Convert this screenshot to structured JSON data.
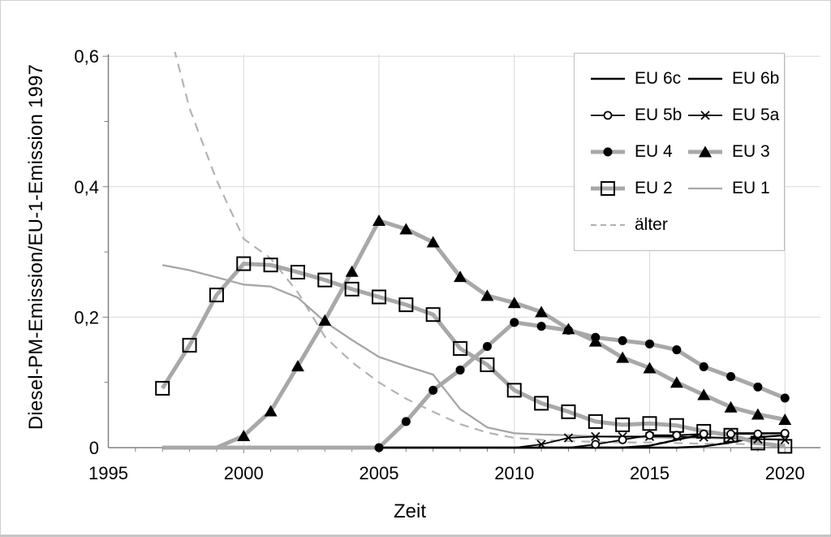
{
  "figure": {
    "background": "#ffffff",
    "border_color": "#cfcfcf",
    "gridline_color": "#d9d9d9",
    "axis_color": "#808080",
    "text_color": "#000000"
  },
  "chart_data": {
    "type": "line",
    "title": "",
    "xlabel": "Zeit",
    "ylabel": "Diesel-PM-Emission/EU-1-Emission 1997",
    "xlim": [
      1995,
      2021.3
    ],
    "ylim": [
      0,
      0.6
    ],
    "grid": true,
    "legend_position": "top-right",
    "x_ticks": {
      "labels": [
        "1995",
        "2000",
        "2005",
        "2010",
        "2015",
        "2020"
      ],
      "values": [
        1995,
        2000,
        2005,
        2010,
        2015,
        2020
      ]
    },
    "y_ticks": {
      "labels": [
        "0",
        "0,2",
        "0,4",
        "0,6"
      ],
      "values": [
        0,
        0.2,
        0.4,
        0.6
      ]
    },
    "x_minor_tick_step": 1,
    "y_minor_tick_step": 0.1,
    "x": [
      1997,
      1998,
      1999,
      2000,
      2001,
      2002,
      2003,
      2004,
      2005,
      2006,
      2007,
      2008,
      2009,
      2010,
      2011,
      2012,
      2013,
      2014,
      2015,
      2016,
      2017,
      2018,
      2019,
      2020
    ],
    "series": [
      {
        "name": "EU 6c",
        "color": "#000000",
        "width": 2.4,
        "dash": null,
        "marker": "none",
        "marker_from": null,
        "values": [
          0,
          0,
          0,
          0,
          0,
          0,
          0,
          0,
          0,
          0,
          0,
          0,
          0,
          0,
          0,
          0,
          0,
          0,
          0,
          0,
          0.002,
          0.008,
          0.016,
          0.019
        ]
      },
      {
        "name": "EU 6b",
        "color": "#000000",
        "width": 2.4,
        "dash": null,
        "marker": "none",
        "marker_from": null,
        "values": [
          0,
          0,
          0,
          0,
          0,
          0,
          0,
          0,
          0,
          0,
          0,
          0,
          0,
          0,
          0,
          0,
          0,
          0,
          0.003,
          0.012,
          0.021,
          0.022,
          0.022,
          0.022
        ]
      },
      {
        "name": "EU 5b",
        "color": "#000000",
        "width": 1.8,
        "dash": null,
        "marker": "circle-open",
        "marker_from": 2013,
        "values": [
          0,
          0,
          0,
          0,
          0,
          0,
          0,
          0,
          0,
          0,
          0,
          0,
          0,
          0,
          0,
          0,
          0.005,
          0.012,
          0.019,
          0.019,
          0.021,
          0.021,
          0.021,
          0.022
        ]
      },
      {
        "name": "EU 5a",
        "color": "#000000",
        "width": 1.8,
        "dash": null,
        "marker": "x",
        "marker_from": 2011,
        "values": [
          0,
          0,
          0,
          0,
          0,
          0,
          0,
          0,
          0,
          0,
          0,
          0,
          0,
          0,
          0.005,
          0.015,
          0.017,
          0.017,
          0.017,
          0.017,
          0.016,
          0.015,
          0.013,
          0.012
        ]
      },
      {
        "name": "EU 4",
        "color": "#a8a8a8",
        "width": 5,
        "dash": null,
        "marker": "circle-filled",
        "marker_from": 2005,
        "values": [
          0,
          0,
          0,
          0,
          0,
          0,
          0,
          0,
          0,
          0.04,
          0.088,
          0.119,
          0.155,
          0.192,
          0.186,
          0.18,
          0.169,
          0.164,
          0.159,
          0.15,
          0.124,
          0.109,
          0.093,
          0.076
        ]
      },
      {
        "name": "EU 3",
        "color": "#a8a8a8",
        "width": 5,
        "dash": null,
        "marker": "triangle-filled",
        "marker_from": 2000,
        "values": [
          0,
          0,
          0,
          0.018,
          0.056,
          0.125,
          0.195,
          0.27,
          0.348,
          0.335,
          0.315,
          0.262,
          0.233,
          0.222,
          0.208,
          0.182,
          0.163,
          0.138,
          0.122,
          0.1,
          0.081,
          0.062,
          0.051,
          0.043
        ]
      },
      {
        "name": "EU 2",
        "color": "#a8a8a8",
        "width": 5,
        "dash": null,
        "marker": "square-open",
        "marker_from": 1997,
        "values": [
          0.091,
          0.157,
          0.234,
          0.282,
          0.28,
          0.269,
          0.257,
          0.243,
          0.231,
          0.219,
          0.204,
          0.152,
          0.127,
          0.088,
          0.068,
          0.055,
          0.04,
          0.035,
          0.037,
          0.034,
          0.025,
          0.019,
          0.007,
          0.002
        ]
      },
      {
        "name": "EU 1",
        "color": "#a6a6a6",
        "width": 2.3,
        "dash": null,
        "marker": "none",
        "marker_from": null,
        "values": [
          0.28,
          0.272,
          0.261,
          0.25,
          0.247,
          0.23,
          0.193,
          0.165,
          0.139,
          0.125,
          0.112,
          0.059,
          0.031,
          0.022,
          0.02,
          0.019,
          0.017,
          0.016,
          0.016,
          0.015,
          0.015,
          0.014,
          0.014,
          0.013
        ]
      },
      {
        "name": "älter",
        "color": "#b3b3b3",
        "width": 2.2,
        "dash": "11 8",
        "marker": "none",
        "marker_from": null,
        "first_point_clipped_above_plot": true,
        "values": [
          0.68,
          0.52,
          0.41,
          0.32,
          0.29,
          0.238,
          0.17,
          0.131,
          0.1,
          0.075,
          0.055,
          0.036,
          0.023,
          0.015,
          0.012,
          0.01,
          0.009,
          0.008,
          0.008,
          0.007,
          0.006,
          0.006,
          0.005,
          0.005
        ]
      }
    ],
    "draw_order": [
      "älter",
      "EU 1",
      "EU 6c",
      "EU 6b",
      "EU 5a",
      "EU 5b",
      "EU 2",
      "EU 3",
      "EU 4"
    ],
    "marker_order": [
      "EU 2",
      "EU 3",
      "EU 4",
      "EU 5a",
      "EU 5b"
    ]
  },
  "legend": {
    "order": [
      "EU 6c",
      "EU 6b",
      "EU 5b",
      "EU 5a",
      "EU 4",
      "EU 3",
      "EU 2",
      "EU 1",
      "älter"
    ]
  }
}
